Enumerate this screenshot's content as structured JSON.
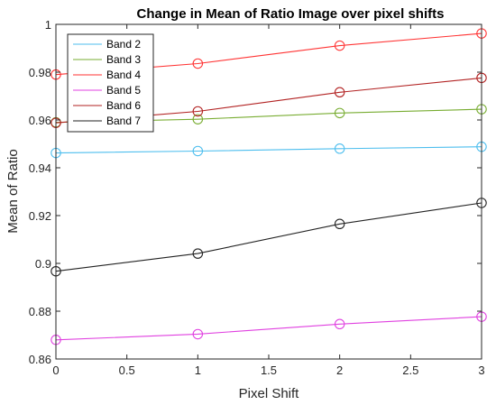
{
  "chart_data": {
    "type": "line",
    "title": "Change in Mean of Ratio Image over pixel shifts",
    "xlabel": "Pixel Shift",
    "ylabel": "Mean of Ratio",
    "xlim": [
      0,
      3
    ],
    "ylim": [
      0.86,
      1.0
    ],
    "xticks": [
      0,
      0.5,
      1,
      1.5,
      2,
      2.5,
      3
    ],
    "xtick_labels": [
      "0",
      "0.5",
      "1",
      "1.5",
      "2",
      "2.5",
      "3"
    ],
    "yticks": [
      0.86,
      0.88,
      0.9,
      0.92,
      0.94,
      0.96,
      0.98,
      1.0
    ],
    "ytick_labels": [
      "0.86",
      "0.88",
      "0.9",
      "0.92",
      "0.94",
      "0.96",
      "0.98",
      "1"
    ],
    "grid": false,
    "legend_position": "top-left",
    "x": [
      0,
      1,
      2,
      3
    ],
    "series": [
      {
        "name": "Band 2",
        "color": "#4DBEEE",
        "values": [
          0.9462,
          0.947,
          0.948,
          0.9488
        ]
      },
      {
        "name": "Band 3",
        "color": "#77AC30",
        "values": [
          0.959,
          0.9603,
          0.9629,
          0.9645
        ]
      },
      {
        "name": "Band 4",
        "color": "#FF3333",
        "values": [
          0.979,
          0.9836,
          0.9911,
          0.9962
        ]
      },
      {
        "name": "Band 5",
        "color": "#E040E0",
        "values": [
          0.868,
          0.8704,
          0.8746,
          0.8777
        ]
      },
      {
        "name": "Band 6",
        "color": "#B22222",
        "values": [
          0.9588,
          0.9636,
          0.9716,
          0.9776
        ]
      },
      {
        "name": "Band 7",
        "color": "#222222",
        "values": [
          0.8967,
          0.9041,
          0.9165,
          0.9253
        ]
      }
    ]
  }
}
